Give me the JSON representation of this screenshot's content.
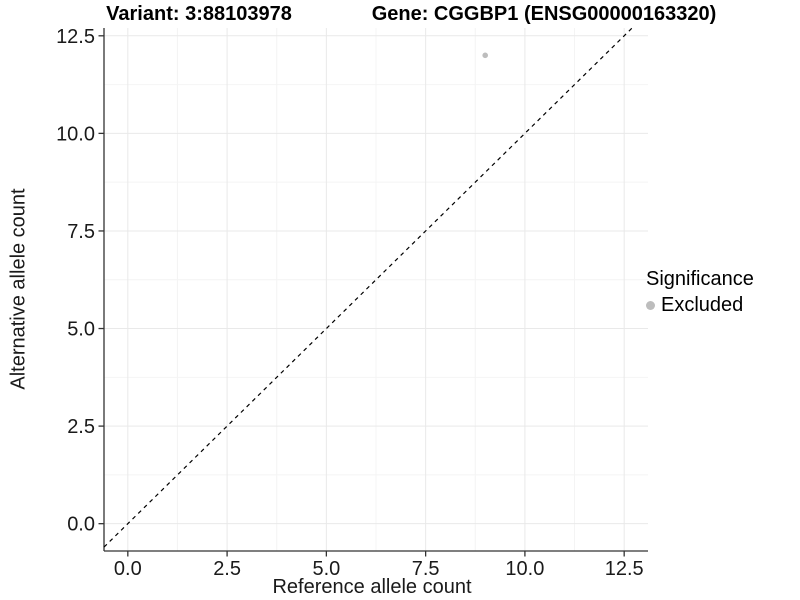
{
  "chart_data": {
    "type": "scatter",
    "title_left": "Variant: 3:88103978",
    "title_right": "Gene: CGGBP1 (ENSG00000163320)",
    "xlabel": "Reference allele count",
    "ylabel": "Alternative allele count",
    "x_ticks": [
      0,
      2.5,
      5,
      7.5,
      10,
      12.5
    ],
    "y_ticks": [
      0,
      2.5,
      5,
      7.5,
      10,
      12.5
    ],
    "x_tick_labels": [
      "0.0",
      "2.5",
      "5.0",
      "7.5",
      "10.0",
      "12.5"
    ],
    "y_tick_labels": [
      "0.0",
      "2.5",
      "5.0",
      "7.5",
      "10.0",
      "12.5"
    ],
    "minor_ticks": [
      1.25,
      3.75,
      6.25,
      8.75,
      11.25
    ],
    "xlim": [
      -0.6,
      13.1
    ],
    "ylim": [
      -0.7,
      12.7
    ],
    "grid": true,
    "series": [
      {
        "name": "Excluded",
        "color": "#bdbdbd",
        "points": [
          {
            "x": 9,
            "y": 12
          }
        ]
      }
    ],
    "reference_line": {
      "type": "identity",
      "slope": 1,
      "intercept": 0,
      "style": "dashed",
      "color": "#000000"
    },
    "legend": {
      "title": "Significance",
      "position": "right",
      "items": [
        {
          "label": "Excluded",
          "color": "#bdbdbd"
        }
      ]
    },
    "colors": {
      "grid_major": "#e9e9e9",
      "grid_minor": "#f4f4f4",
      "axis_line": "#333333",
      "tick_text": "#1a1a1a"
    }
  }
}
